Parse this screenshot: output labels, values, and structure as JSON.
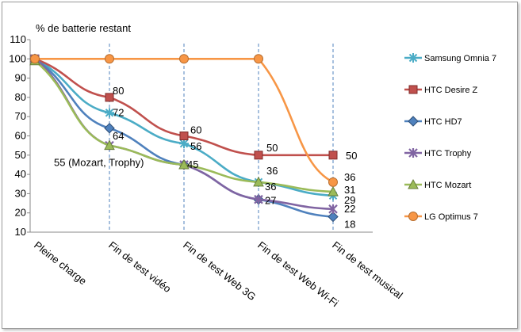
{
  "chart_data": {
    "type": "line",
    "ylabel": "% de batterie restant",
    "ylim": [
      10,
      110
    ],
    "yticks": [
      10,
      20,
      30,
      40,
      50,
      60,
      70,
      80,
      90,
      100,
      110
    ],
    "grid": "vertical dashed lines at test points",
    "legend_position": "right",
    "categories": [
      "Pleine charge",
      "Fin de test  vidéo",
      "Fin de test  Web 3G",
      "Fin de test  Web Wi-Fi",
      "Fin de test  musical"
    ],
    "series": [
      {
        "name": "Samsung Omnia 7",
        "color": "#4bacc6",
        "marker": "asterisk",
        "values": [
          100,
          72,
          56,
          36,
          29
        ]
      },
      {
        "name": "HTC Desire Z",
        "color": "#c0504d",
        "marker": "square",
        "values": [
          100,
          80,
          60,
          50,
          50
        ]
      },
      {
        "name": "HTC HD7",
        "color": "#4f81bd",
        "marker": "diamond",
        "values": [
          100,
          64,
          45,
          27,
          18
        ]
      },
      {
        "name": "HTC Trophy",
        "color": "#8064a2",
        "marker": "x-star",
        "values": [
          100,
          55,
          45,
          27,
          22
        ]
      },
      {
        "name": "HTC Mozart",
        "color": "#9bbb59",
        "marker": "triangle",
        "values": [
          99,
          55,
          45,
          36,
          31
        ]
      },
      {
        "name": "LG Optimus 7",
        "color": "#f79646",
        "marker": "circle",
        "values": [
          100,
          100,
          100,
          100,
          36
        ]
      }
    ],
    "annotations": [
      {
        "text": "80",
        "cat": 1,
        "y": 80,
        "dx": 4,
        "dy": -4
      },
      {
        "text": "72",
        "cat": 1,
        "y": 72,
        "dx": 4,
        "dy": 4
      },
      {
        "text": "64",
        "cat": 1,
        "y": 64,
        "dx": 4,
        "dy": 14
      },
      {
        "text": "55 (Mozart, Trophy)",
        "cat": 1,
        "y": 55,
        "dx": -70,
        "dy": 26
      },
      {
        "text": "60",
        "cat": 2,
        "y": 60,
        "dx": 8,
        "dy": -3
      },
      {
        "text": "56",
        "cat": 2,
        "y": 56,
        "dx": 8,
        "dy": 8
      },
      {
        "text": "45",
        "cat": 2,
        "y": 45,
        "dx": 4,
        "dy": 4
      },
      {
        "text": "50",
        "cat": 3,
        "y": 50,
        "dx": 10,
        "dy": -5
      },
      {
        "text": "36",
        "cat": 3,
        "y": 36,
        "dx": 10,
        "dy": -10
      },
      {
        "text": "36",
        "cat": 3,
        "y": 36,
        "dx": 8,
        "dy": 10
      },
      {
        "text": "27",
        "cat": 3,
        "y": 27,
        "dx": 8,
        "dy": 6
      },
      {
        "text": "50",
        "cat": 4,
        "y": 50,
        "dx": 16,
        "dy": 5
      },
      {
        "text": "36",
        "cat": 4,
        "y": 36,
        "dx": 14,
        "dy": -2
      },
      {
        "text": "31",
        "cat": 4,
        "y": 31,
        "dx": 14,
        "dy": 2
      },
      {
        "text": "29",
        "cat": 4,
        "y": 29,
        "dx": 14,
        "dy": 10
      },
      {
        "text": "22",
        "cat": 4,
        "y": 22,
        "dx": 14,
        "dy": 4
      },
      {
        "text": "18",
        "cat": 4,
        "y": 18,
        "dx": 14,
        "dy": 14
      }
    ]
  }
}
